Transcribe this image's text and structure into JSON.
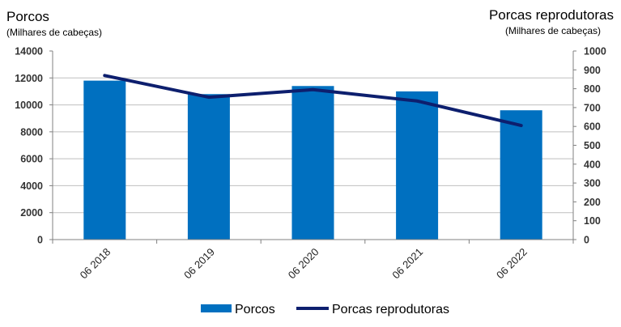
{
  "chart_data": {
    "type": "bar+line",
    "categories": [
      "06 2018",
      "06 2019",
      "06 2020",
      "06 2021",
      "06 2022"
    ],
    "series": [
      {
        "name": "Porcos",
        "type": "bar",
        "axis": "left",
        "values": [
          11800,
          10800,
          11400,
          11000,
          9600
        ],
        "color": "#0070C0"
      },
      {
        "name": "Porcas reprodutoras",
        "type": "line",
        "axis": "right",
        "values": [
          870,
          755,
          795,
          735,
          605
        ],
        "color": "#0D1F6E"
      }
    ],
    "left_axis": {
      "title": "Porcos",
      "unit": "(Milhares de cabeças)",
      "ylim": [
        0,
        14000
      ],
      "ticks": [
        "0",
        "2000",
        "4000",
        "6000",
        "8000",
        "10000",
        "12000",
        "14000"
      ]
    },
    "right_axis": {
      "title": "Porcas reprodutoras",
      "unit": "(Milhares de cabeças)",
      "ylim": [
        0,
        1000
      ],
      "ticks": [
        "0",
        "100",
        "200",
        "300",
        "400",
        "500",
        "600",
        "700",
        "800",
        "900",
        "1000"
      ]
    },
    "grid": true,
    "legend": "bottom",
    "legend_labels": [
      "Porcos",
      "Porcas reprodutoras"
    ]
  }
}
